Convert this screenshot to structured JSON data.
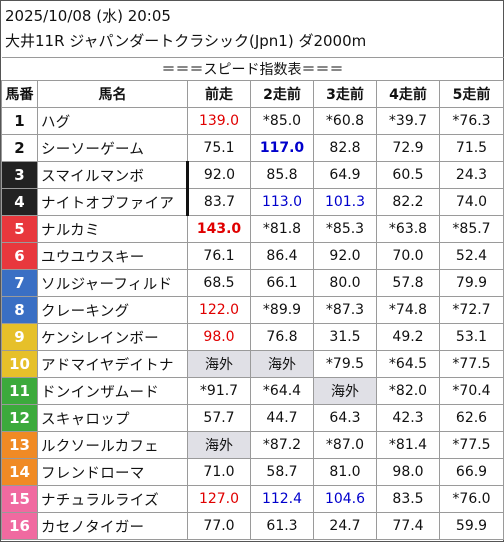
{
  "header": {
    "datetime": "2025/10/08 (水) 20:05",
    "race": "大井11R ジャパンダートクラシック(Jpn1) ダ2000m"
  },
  "table": {
    "title": "＝＝＝スピード指数表＝＝＝",
    "columns": [
      "馬番",
      "馬名",
      "前走",
      "2走前",
      "3走前",
      "4走前",
      "5走前"
    ],
    "rows": [
      {
        "num": "1",
        "name": "ハグ",
        "frame_color": "#ffffff",
        "num_color": "#111111",
        "values": [
          "139.0",
          "*85.0",
          "*60.8",
          "*39.7",
          "*76.3"
        ],
        "styles": [
          "red",
          "",
          "",
          "",
          ""
        ]
      },
      {
        "num": "2",
        "name": "シーソーゲーム",
        "frame_color": "#ffffff",
        "num_color": "#111111",
        "values": [
          "75.1",
          "117.0",
          "82.8",
          "72.9",
          "71.5"
        ],
        "styles": [
          "",
          "blue-bold",
          "",
          "",
          ""
        ]
      },
      {
        "num": "3",
        "name": "スマイルマンボ",
        "frame_color": "#222222",
        "num_color": "#ffffff",
        "values": [
          "92.0",
          "85.8",
          "64.9",
          "60.5",
          "24.3"
        ],
        "styles": [
          "",
          "",
          "",
          "",
          ""
        ]
      },
      {
        "num": "4",
        "name": "ナイトオブファイア",
        "frame_color": "#222222",
        "num_color": "#ffffff",
        "values": [
          "83.7",
          "113.0",
          "101.3",
          "82.2",
          "74.0"
        ],
        "styles": [
          "",
          "blue",
          "blue",
          "",
          ""
        ]
      },
      {
        "num": "5",
        "name": "ナルカミ",
        "frame_color": "#e8383d",
        "num_color": "#ffffff",
        "values": [
          "143.0",
          "*81.8",
          "*85.3",
          "*63.8",
          "*85.7"
        ],
        "styles": [
          "red-bold",
          "",
          "",
          "",
          ""
        ]
      },
      {
        "num": "6",
        "name": "ユウユウスキー",
        "frame_color": "#e8383d",
        "num_color": "#ffffff",
        "values": [
          "76.1",
          "86.4",
          "92.0",
          "70.0",
          "52.4"
        ],
        "styles": [
          "",
          "",
          "",
          "",
          ""
        ]
      },
      {
        "num": "7",
        "name": "ソルジャーフィルド",
        "frame_color": "#3a6fc4",
        "num_color": "#ffffff",
        "values": [
          "68.5",
          "66.1",
          "80.0",
          "57.8",
          "79.9"
        ],
        "styles": [
          "",
          "",
          "",
          "",
          ""
        ]
      },
      {
        "num": "8",
        "name": "クレーキング",
        "frame_color": "#3a6fc4",
        "num_color": "#ffffff",
        "values": [
          "122.0",
          "*89.9",
          "*87.3",
          "*74.8",
          "*72.7"
        ],
        "styles": [
          "red",
          "",
          "",
          "",
          ""
        ]
      },
      {
        "num": "9",
        "name": "ケンシレインボー",
        "frame_color": "#e6c02a",
        "num_color": "#ffffff",
        "values": [
          "98.0",
          "76.8",
          "31.5",
          "49.2",
          "53.1"
        ],
        "styles": [
          "red",
          "",
          "",
          "",
          ""
        ]
      },
      {
        "num": "10",
        "name": "アドマイヤデイトナ",
        "frame_color": "#e6c02a",
        "num_color": "#ffffff",
        "values": [
          "海外",
          "海外",
          "*79.5",
          "*64.5",
          "*77.5"
        ],
        "styles": [
          "overseas",
          "overseas",
          "",
          "",
          ""
        ]
      },
      {
        "num": "11",
        "name": "ドンインザムード",
        "frame_color": "#3caa3c",
        "num_color": "#ffffff",
        "values": [
          "*91.7",
          "*64.4",
          "海外",
          "*82.0",
          "*70.4"
        ],
        "styles": [
          "",
          "",
          "overseas",
          "",
          ""
        ]
      },
      {
        "num": "12",
        "name": "スキャロップ",
        "frame_color": "#3caa3c",
        "num_color": "#ffffff",
        "values": [
          "57.7",
          "44.7",
          "64.3",
          "42.3",
          "62.6"
        ],
        "styles": [
          "",
          "",
          "",
          "",
          ""
        ]
      },
      {
        "num": "13",
        "name": "ルクソールカフェ",
        "frame_color": "#f08a24",
        "num_color": "#ffffff",
        "values": [
          "海外",
          "*87.2",
          "*87.0",
          "*81.4",
          "*77.5"
        ],
        "styles": [
          "overseas",
          "",
          "",
          "",
          ""
        ]
      },
      {
        "num": "14",
        "name": "フレンドローマ",
        "frame_color": "#f08a24",
        "num_color": "#ffffff",
        "values": [
          "71.0",
          "58.7",
          "81.0",
          "98.0",
          "66.9"
        ],
        "styles": [
          "",
          "",
          "",
          "",
          ""
        ]
      },
      {
        "num": "15",
        "name": "ナチュラルライズ",
        "frame_color": "#f06aa0",
        "num_color": "#ffffff",
        "values": [
          "127.0",
          "112.4",
          "104.6",
          "83.5",
          "*76.0"
        ],
        "styles": [
          "red",
          "blue",
          "blue",
          "",
          ""
        ]
      },
      {
        "num": "16",
        "name": "カセノタイガー",
        "frame_color": "#f06aa0",
        "num_color": "#ffffff",
        "values": [
          "77.0",
          "61.3",
          "24.7",
          "77.4",
          "59.9"
        ],
        "styles": [
          "",
          "",
          "",
          "",
          ""
        ]
      }
    ]
  }
}
